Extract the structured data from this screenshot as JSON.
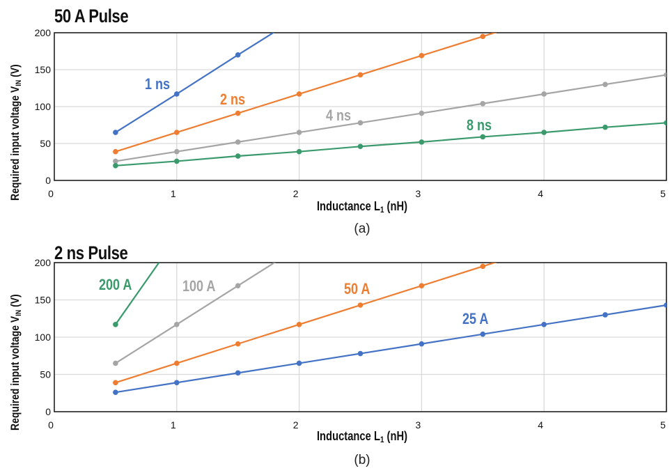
{
  "chart_data": [
    {
      "type": "line",
      "title": "50 A Pulse",
      "ylabel_main": "Required input voltage V",
      "ylabel_sub": "IN",
      "ylabel_unit": " (V)",
      "xlabel_main": "Inductance L",
      "xlabel_sub": "1",
      "xlabel_unit": " (nH)",
      "caption": "(a)",
      "xlim": [
        0,
        5
      ],
      "ylim": [
        0,
        200
      ],
      "xticks": [
        "0",
        "1",
        "2",
        "3",
        "4",
        "5"
      ],
      "yticks": [
        "0",
        "50",
        "100",
        "150",
        "200"
      ],
      "grid": true,
      "series": [
        {
          "name": "1 ns",
          "color": "#4472c4",
          "x": [
            0.5,
            1.0,
            1.5,
            2.0
          ],
          "y": [
            65,
            117,
            170,
            222
          ]
        },
        {
          "name": "2 ns",
          "color": "#ed7d31",
          "x": [
            0.5,
            1.0,
            1.5,
            2.0,
            2.5,
            3.0,
            3.5,
            4.0
          ],
          "y": [
            39,
            65,
            91,
            117,
            143,
            169,
            195,
            221
          ]
        },
        {
          "name": "4 ns",
          "color": "#a5a5a5",
          "x": [
            0.5,
            1.0,
            1.5,
            2.0,
            2.5,
            3.0,
            3.5,
            4.0,
            4.5,
            5.0
          ],
          "y": [
            26,
            39,
            52,
            65,
            78,
            91,
            104,
            117,
            130,
            143
          ]
        },
        {
          "name": "8 ns",
          "color": "#3a9a6c",
          "x": [
            0.5,
            1.0,
            1.5,
            2.0,
            2.5,
            3.0,
            3.5,
            4.0,
            4.5,
            5.0
          ],
          "y": [
            20,
            26,
            33,
            39,
            46,
            52,
            59,
            65,
            72,
            78
          ]
        }
      ]
    },
    {
      "type": "line",
      "title": "2 ns Pulse",
      "ylabel_main": "Required input voltage V",
      "ylabel_sub": "IN",
      "ylabel_unit": " (V)",
      "xlabel_main": "Inductance L",
      "xlabel_sub": "1",
      "xlabel_unit": " (nH)",
      "caption": "(b)",
      "xlim": [
        0,
        5
      ],
      "ylim": [
        0,
        200
      ],
      "xticks": [
        "0",
        "1",
        "2",
        "3",
        "4",
        "5"
      ],
      "yticks": [
        "0",
        "50",
        "100",
        "150",
        "200"
      ],
      "grid": true,
      "series": [
        {
          "name": "200 A",
          "color": "#3a9a6c",
          "x": [
            0.5,
            1.0
          ],
          "y": [
            117,
            234
          ]
        },
        {
          "name": "100 A",
          "color": "#a5a5a5",
          "x": [
            0.5,
            1.0,
            1.5,
            2.0
          ],
          "y": [
            65,
            117,
            169,
            221
          ]
        },
        {
          "name": "50 A",
          "color": "#ed7d31",
          "x": [
            0.5,
            1.0,
            1.5,
            2.0,
            2.5,
            3.0,
            3.5,
            4.0
          ],
          "y": [
            39,
            65,
            91,
            117,
            143,
            169,
            195,
            221
          ]
        },
        {
          "name": "25 A",
          "color": "#4472c4",
          "x": [
            0.5,
            1.0,
            1.5,
            2.0,
            2.5,
            3.0,
            3.5,
            4.0,
            4.5,
            5.0
          ],
          "y": [
            26,
            39,
            52,
            65,
            78,
            91,
            104,
            117,
            130,
            143
          ]
        }
      ]
    }
  ]
}
